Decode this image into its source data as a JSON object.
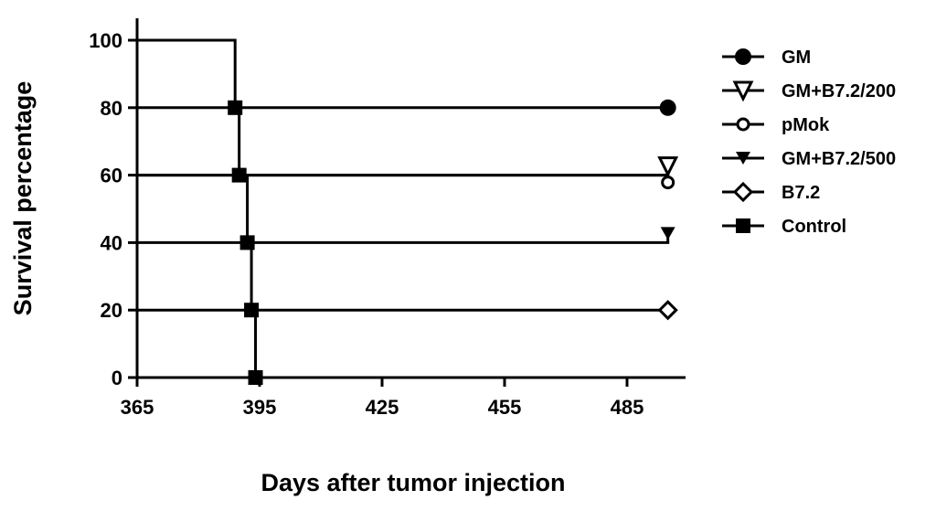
{
  "chart_data": {
    "type": "line",
    "subtype": "kaplan-meier survival step plot",
    "title": "",
    "xlabel": "Days after tumor injection",
    "ylabel": "Survival percentage",
    "xlim": [
      365,
      500
    ],
    "ylim": [
      0,
      105
    ],
    "xticks": [
      "365",
      "395",
      "425",
      "455",
      "485"
    ],
    "yticks": [
      "0",
      "20",
      "40",
      "60",
      "80",
      "100"
    ],
    "grid": false,
    "legend_position": "right",
    "series": [
      {
        "name": "GM",
        "marker": "filled-circle",
        "x": [
          365,
          495
        ],
        "y": [
          80,
          80
        ]
      },
      {
        "name": "GM+B7.2/200",
        "marker": "open-triangle-down",
        "x": [
          365,
          495
        ],
        "y": [
          60,
          60
        ]
      },
      {
        "name": "pMok",
        "marker": "open-circle",
        "x": [
          365,
          495
        ],
        "y": [
          60,
          60
        ]
      },
      {
        "name": "GM+B7.2/500",
        "marker": "filled-triangle-down",
        "x": [
          365,
          495
        ],
        "y": [
          40,
          40
        ]
      },
      {
        "name": "B7.2",
        "marker": "open-diamond",
        "x": [
          365,
          495
        ],
        "y": [
          20,
          20
        ]
      },
      {
        "name": "Control",
        "marker": "filled-square",
        "x": [
          365,
          389,
          390,
          392,
          393,
          394
        ],
        "y": [
          100,
          80,
          60,
          40,
          20,
          0
        ]
      }
    ]
  }
}
